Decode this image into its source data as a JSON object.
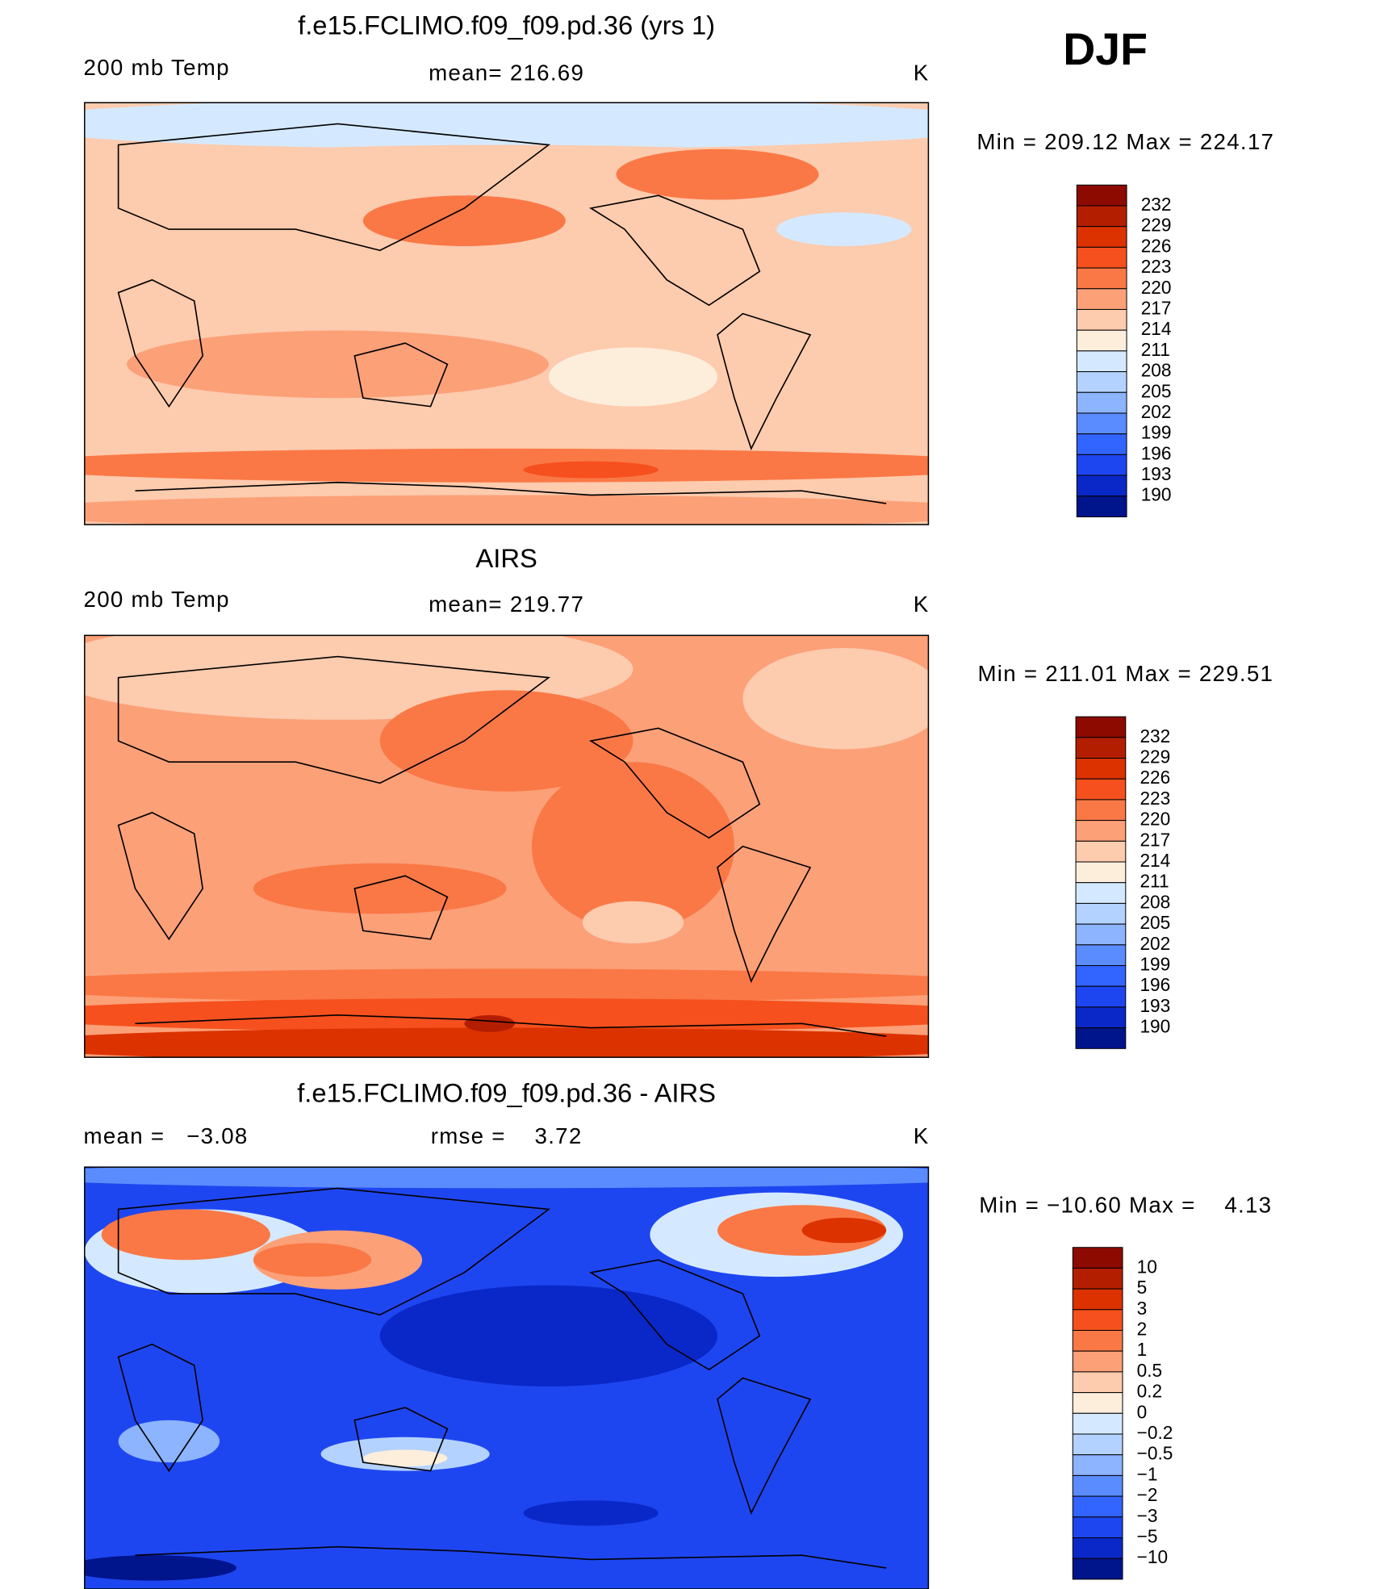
{
  "title": "DJF",
  "panels": [
    {
      "title": "f.e15.FCLIMO.f09_f09.pd.36 (yrs 1)",
      "left_label": "200 mb Temp",
      "center_label": "mean= 216.69",
      "right_label": "K",
      "min_max": "Min = 209.12 Max = 224.17",
      "colorbar": {
        "labels": [
          "232",
          "229",
          "226",
          "223",
          "220",
          "217",
          "214",
          "211",
          "208",
          "205",
          "202",
          "199",
          "196",
          "193",
          "190"
        ],
        "colors": [
          "#8c0a00",
          "#b41e00",
          "#dc3200",
          "#f5501e",
          "#fa7846",
          "#fca078",
          "#fdcbae",
          "#fdeedc",
          "#d4e9ff",
          "#b4d2ff",
          "#8cb4ff",
          "#5a8cff",
          "#3264ff",
          "#1e46f0",
          "#0a28c8",
          "#00148c"
        ]
      }
    },
    {
      "title": "AIRS",
      "left_label": "200 mb Temp",
      "center_label": "mean= 219.77",
      "right_label": "K",
      "min_max": "Min = 211.01 Max = 229.51",
      "colorbar": {
        "labels": [
          "232",
          "229",
          "226",
          "223",
          "220",
          "217",
          "214",
          "211",
          "208",
          "205",
          "202",
          "199",
          "196",
          "193",
          "190"
        ],
        "colors": [
          "#8c0a00",
          "#b41e00",
          "#dc3200",
          "#f5501e",
          "#fa7846",
          "#fca078",
          "#fdcbae",
          "#fdeedc",
          "#d4e9ff",
          "#b4d2ff",
          "#8cb4ff",
          "#5a8cff",
          "#3264ff",
          "#1e46f0",
          "#0a28c8",
          "#00148c"
        ]
      }
    },
    {
      "title": "f.e15.FCLIMO.f09_f09.pd.36 - AIRS",
      "left_label": "mean =   −3.08",
      "center_label": "rmse =    3.72",
      "right_label": "K",
      "min_max": "Min = −10.60 Max =    4.13",
      "colorbar": {
        "labels": [
          "10",
          "5",
          "3",
          "2",
          "1",
          "0.5",
          "0.2",
          "0",
          "−0.2",
          "−0.5",
          "−1",
          "−2",
          "−3",
          "−5",
          "−10"
        ],
        "colors": [
          "#8c0a00",
          "#b41e00",
          "#dc3200",
          "#f5501e",
          "#fa7846",
          "#fca078",
          "#fdcbae",
          "#fdeedc",
          "#d4e9ff",
          "#b4d2ff",
          "#8cb4ff",
          "#5a8cff",
          "#3264ff",
          "#1e46f0",
          "#0a28c8",
          "#00148c"
        ]
      }
    }
  ]
}
